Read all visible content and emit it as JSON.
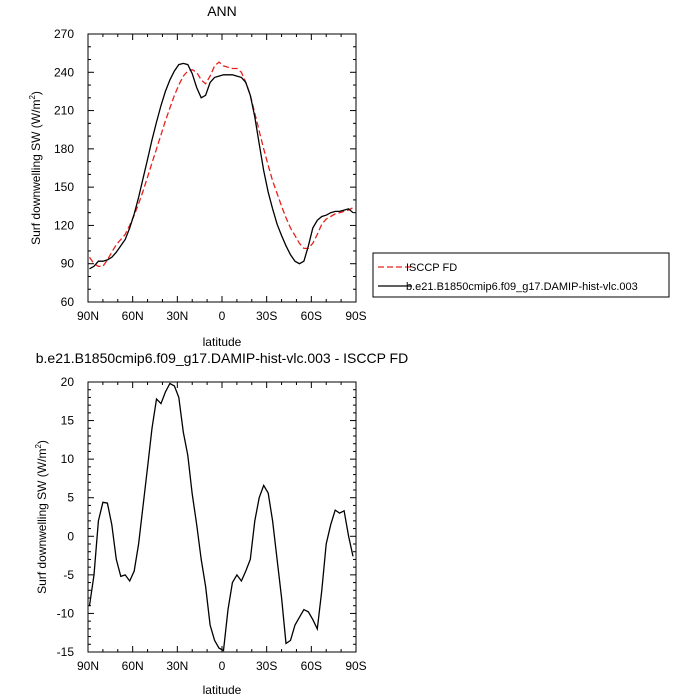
{
  "chart_data": [
    {
      "type": "line",
      "title": "ANN",
      "xlabel": "latitude",
      "ylabel": "Surf downwelling SW (W/m",
      "ylabel_sup": "2",
      "ylabel_end": ")",
      "xlim": [
        90,
        -90
      ],
      "ylim": [
        60,
        270
      ],
      "xticks": [
        {
          "value": 90,
          "label": "90N"
        },
        {
          "value": 60,
          "label": "60N"
        },
        {
          "value": 30,
          "label": "30N"
        },
        {
          "value": 0,
          "label": "0"
        },
        {
          "value": -30,
          "label": "30S"
        },
        {
          "value": -60,
          "label": "60S"
        },
        {
          "value": -90,
          "label": "90S"
        }
      ],
      "yticks": [
        60,
        90,
        120,
        150,
        180,
        210,
        240,
        270
      ],
      "legend_position": "right",
      "series": [
        {
          "name": "ISCCP FD",
          "color": "#e8211c",
          "dash": "dashed",
          "x": [
            89,
            86,
            83,
            80,
            77,
            74,
            71,
            68,
            65,
            62,
            59,
            56,
            53,
            50,
            47,
            44,
            41,
            38,
            35,
            32,
            29,
            26,
            23,
            20,
            17,
            14,
            11,
            8,
            5,
            2,
            -1,
            -4,
            -7,
            -10,
            -13,
            -16,
            -19,
            -22,
            -25,
            -28,
            -31,
            -34,
            -37,
            -40,
            -43,
            -46,
            -49,
            -52,
            -55,
            -58,
            -61,
            -64,
            -67,
            -70,
            -73,
            -76,
            -79,
            -82,
            -85,
            -88
          ],
          "y": [
            95,
            90,
            88,
            88,
            93,
            99,
            105,
            109,
            113,
            120,
            128,
            137,
            147,
            158,
            169,
            180,
            191,
            202,
            212,
            222,
            230,
            237,
            241,
            242,
            240,
            234,
            231,
            237,
            245,
            248,
            245,
            244,
            243,
            243,
            240,
            232,
            222,
            208,
            194,
            180,
            167,
            155,
            145,
            135,
            126,
            118,
            112,
            106,
            102,
            102,
            106,
            113,
            121,
            125,
            127,
            129,
            130,
            131,
            132,
            134
          ]
        },
        {
          "name": "b.e21.B1850cmip6.f09_g17.DAMIP-hist-vlc.003",
          "color": "#000000",
          "dash": "solid",
          "x": [
            89,
            86,
            83,
            80,
            77,
            74,
            71,
            68,
            65,
            62,
            59,
            56,
            53,
            50,
            47,
            44,
            41,
            38,
            35,
            32,
            29,
            26,
            23,
            20,
            17,
            14,
            11,
            8,
            5,
            2,
            -1,
            -4,
            -7,
            -10,
            -13,
            -16,
            -19,
            -22,
            -25,
            -28,
            -31,
            -34,
            -37,
            -40,
            -43,
            -46,
            -49,
            -52,
            -55,
            -58,
            -61,
            -64,
            -67,
            -70,
            -73,
            -76,
            -79,
            -82,
            -85,
            -88
          ],
          "y": [
            86,
            88,
            92,
            92,
            93,
            95,
            99,
            104,
            109,
            118,
            129,
            142,
            157,
            172,
            187,
            201,
            214,
            225,
            234,
            241,
            246,
            247,
            246,
            239,
            228,
            220,
            222,
            232,
            236,
            237,
            238,
            238,
            238,
            237,
            236,
            232,
            222,
            205,
            184,
            163,
            146,
            133,
            121,
            112,
            104,
            97,
            92,
            90,
            92,
            104,
            118,
            124,
            127,
            128,
            130,
            131,
            131,
            132,
            133,
            130
          ]
        }
      ]
    },
    {
      "type": "line",
      "title": "b.e21.B1850cmip6.f09_g17.DAMIP-hist-vlc.003 - ISCCP FD",
      "xlabel": "latitude",
      "ylabel": "Surf downwelling SW (W/m",
      "ylabel_sup": "2",
      "ylabel_end": ")",
      "xlim": [
        90,
        -90
      ],
      "ylim": [
        -15,
        20
      ],
      "xticks": [
        {
          "value": 90,
          "label": "90N"
        },
        {
          "value": 60,
          "label": "60N"
        },
        {
          "value": 30,
          "label": "30N"
        },
        {
          "value": 0,
          "label": "0"
        },
        {
          "value": -30,
          "label": "30S"
        },
        {
          "value": -60,
          "label": "60S"
        },
        {
          "value": -90,
          "label": "90S"
        }
      ],
      "yticks": [
        -15,
        -10,
        -5,
        0,
        5,
        10,
        15,
        20
      ],
      "series": [
        {
          "color": "#000000",
          "dash": "solid",
          "x": [
            89,
            86,
            83,
            80,
            77,
            74,
            71,
            68,
            65,
            62,
            59,
            56,
            53,
            50,
            47,
            44,
            41,
            38,
            35,
            32,
            29,
            26,
            23,
            20,
            17,
            14,
            11,
            8,
            5,
            2,
            -1,
            -4,
            -7,
            -10,
            -13,
            -16,
            -19,
            -22,
            -25,
            -28,
            -31,
            -34,
            -37,
            -40,
            -43,
            -46,
            -49,
            -52,
            -55,
            -58,
            -61,
            -64,
            -67,
            -70,
            -73,
            -76,
            -79,
            -82,
            -85,
            -88
          ],
          "y": [
            -9,
            -5,
            2,
            4.4,
            4.3,
            1.5,
            -3,
            -5.2,
            -5,
            -5.8,
            -4.5,
            -1,
            4,
            9,
            14,
            17.8,
            17.2,
            18.7,
            19.8,
            19.5,
            18,
            13.5,
            10.5,
            5.5,
            1.5,
            -3,
            -6.5,
            -11.5,
            -13.5,
            -14.5,
            -14.8,
            -9.5,
            -6,
            -5,
            -5.8,
            -4.5,
            -3,
            2,
            5,
            6.6,
            5.6,
            2,
            -3,
            -8,
            -13.9,
            -13.5,
            -11.5,
            -10.5,
            -9.5,
            -9.8,
            -10.8,
            -12,
            -7,
            -1,
            1.5,
            3.4,
            3,
            3.3,
            0,
            -2.6
          ]
        }
      ]
    }
  ]
}
